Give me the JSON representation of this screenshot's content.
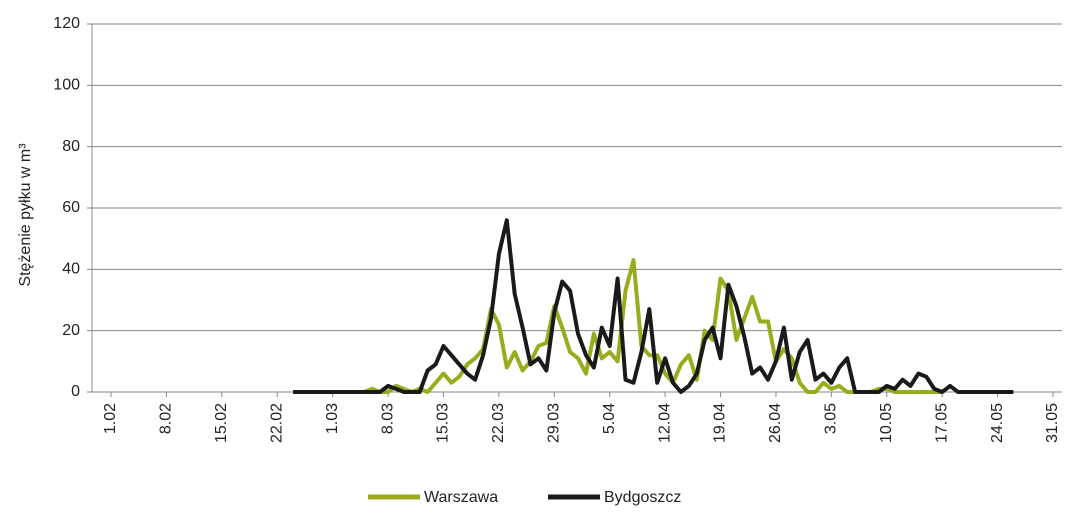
{
  "chart_data": {
    "type": "line",
    "ylabel": "Stężenie pyłku w m³",
    "categories": [
      "1.02",
      null,
      null,
      null,
      null,
      null,
      null,
      "8.02",
      null,
      null,
      null,
      null,
      null,
      null,
      "15.02",
      null,
      null,
      null,
      null,
      null,
      null,
      "22.02",
      null,
      null,
      null,
      null,
      null,
      null,
      "1.03",
      null,
      null,
      null,
      null,
      null,
      null,
      "8.03",
      null,
      null,
      null,
      null,
      null,
      null,
      "15.03",
      null,
      null,
      null,
      null,
      null,
      null,
      "22.03",
      null,
      null,
      null,
      null,
      null,
      null,
      "29.03",
      null,
      null,
      null,
      null,
      null,
      null,
      "5.04",
      null,
      null,
      null,
      null,
      null,
      null,
      "12.04",
      null,
      null,
      null,
      null,
      null,
      null,
      "19.04",
      null,
      null,
      null,
      null,
      null,
      null,
      "26.04",
      null,
      null,
      null,
      null,
      null,
      null,
      "3.05",
      null,
      null,
      null,
      null,
      null,
      null,
      "10.05",
      null,
      null,
      null,
      null,
      null,
      null,
      "17.05",
      null,
      null,
      null,
      null,
      null,
      null,
      "24.05",
      null,
      null,
      null,
      null,
      null,
      null,
      "31.05"
    ],
    "series": [
      {
        "name": "Warszawa",
        "color": "#9aab1e",
        "values": [
          null,
          null,
          null,
          null,
          null,
          null,
          null,
          null,
          null,
          null,
          null,
          null,
          null,
          null,
          null,
          null,
          null,
          null,
          null,
          null,
          null,
          null,
          null,
          0,
          0,
          0,
          0,
          0,
          0,
          0,
          0,
          0,
          0,
          1,
          0,
          0,
          2,
          1,
          0,
          1,
          0,
          3,
          6,
          3,
          5,
          9,
          11,
          14,
          27,
          22,
          8,
          13,
          7,
          10,
          15,
          16,
          28,
          21,
          13,
          11,
          6,
          19,
          11,
          13,
          10,
          33,
          43,
          15,
          12,
          12,
          6,
          3,
          9,
          12,
          4,
          20,
          17,
          37,
          33,
          17,
          24,
          31,
          23,
          23,
          10,
          14,
          11,
          3,
          0,
          0,
          3,
          1,
          2,
          0,
          0,
          0,
          0,
          1,
          1,
          0,
          0,
          0,
          0,
          0,
          0,
          0,
          null,
          null,
          null,
          null,
          null,
          null,
          null,
          null,
          null,
          null,
          null,
          null,
          null,
          null
        ]
      },
      {
        "name": "Bydgoszcz",
        "color": "#1a1a1a",
        "values": [
          null,
          null,
          null,
          null,
          null,
          null,
          null,
          null,
          null,
          null,
          null,
          null,
          null,
          null,
          null,
          null,
          null,
          null,
          null,
          null,
          null,
          null,
          null,
          0,
          0,
          0,
          0,
          0,
          0,
          0,
          0,
          0,
          0,
          0,
          0,
          2,
          1,
          0,
          0,
          0,
          7,
          9,
          15,
          12,
          9,
          6,
          4,
          12,
          24,
          45,
          56,
          32,
          21,
          9,
          11,
          7,
          26,
          36,
          33,
          19,
          12,
          8,
          21,
          15,
          37,
          4,
          3,
          13,
          27,
          3,
          11,
          3,
          0,
          2,
          6,
          17,
          21,
          11,
          35,
          28,
          18,
          6,
          8,
          4,
          10,
          21,
          4,
          13,
          17,
          4,
          6,
          3,
          8,
          11,
          0,
          0,
          0,
          0,
          2,
          1,
          4,
          2,
          6,
          5,
          1,
          0,
          2,
          0,
          0,
          0,
          0,
          0,
          0,
          0,
          0,
          null,
          null,
          null,
          null,
          null
        ]
      }
    ],
    "ylim": [
      0,
      120
    ],
    "yticks": [
      0,
      20,
      40,
      60,
      80,
      100,
      120
    ],
    "grid": true
  }
}
